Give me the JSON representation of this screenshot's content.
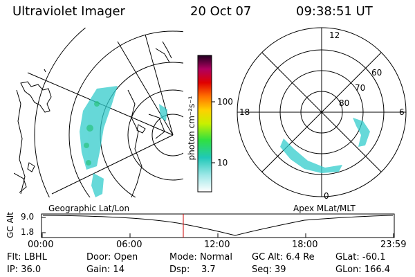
{
  "header": {
    "instrument": "Ultraviolet Imager",
    "date": "20 Oct 07",
    "time": "09:38:51 UT"
  },
  "colorbar": {
    "unit": "photon cm⁻²s⁻¹",
    "ticks": [
      "100",
      "10"
    ]
  },
  "panels": {
    "left_caption": "Geographic Lat/Lon",
    "right_caption": "Apex MLat/MLT"
  },
  "polar": {
    "mlt_labels": {
      "top": "12",
      "left": "18",
      "right": "6",
      "bottom": "0"
    },
    "lat_labels": [
      "60",
      "70",
      "80"
    ]
  },
  "timeline": {
    "ylabel": "GC Alt",
    "y_ticks": [
      "9.0",
      "1.8"
    ],
    "x_ticks": [
      "00:00",
      "06:00",
      "12:00",
      "18:00",
      "23:59"
    ],
    "current_marker": "09:38"
  },
  "status": {
    "row1": [
      {
        "label": "Flt:",
        "value": "LBHL"
      },
      {
        "label": "Door:",
        "value": "Open"
      },
      {
        "label": "Mode:",
        "value": "Normal"
      },
      {
        "label": "GC Alt:",
        "value": "6.4 Re"
      },
      {
        "label": "GLat:",
        "value": "-60.1"
      }
    ],
    "row2": [
      {
        "label": "IP:",
        "value": "36.0"
      },
      {
        "label": "Gain:",
        "value": "14"
      },
      {
        "label": "Dsp:",
        "value": "3.7"
      },
      {
        "label": "Seq:",
        "value": "39"
      },
      {
        "label": "GLon:",
        "value": "166.4"
      }
    ]
  },
  "colors": {
    "marker": "#cc0000",
    "aurora": "#33cccc"
  }
}
